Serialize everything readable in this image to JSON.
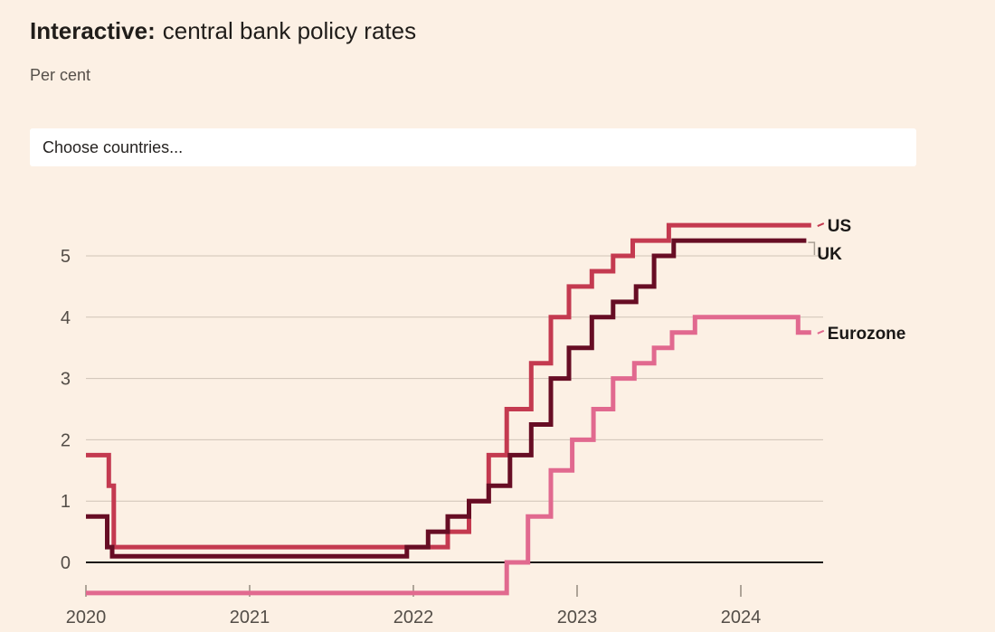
{
  "header": {
    "title_bold": "Interactive:",
    "title_rest": "central bank policy rates",
    "subtitle": "Per cent"
  },
  "controls": {
    "country_select": {
      "placeholder": "Choose countries..."
    }
  },
  "colors": {
    "background": "#fcf0e4",
    "title_text": "#201d1a",
    "subtitle_text": "#55504a",
    "axis_text": "#534d47",
    "grid_line": "#cfc3b6",
    "zero_line": "#181512",
    "axis_tick": "#948a7e",
    "leader_line": "#a99f93",
    "legend_text": "#1a1817",
    "us": "#c43a50",
    "uk": "#670d24",
    "eurozone": "#e1698f"
  },
  "chart_data": {
    "type": "line",
    "step": true,
    "title": "Interactive: central bank policy rates",
    "ylabel": "Per cent",
    "grid": true,
    "legend_position": "right-of-line-ends",
    "x_axis": {
      "ticks": [
        2020,
        2021,
        2022,
        2023,
        2024
      ],
      "range": [
        2020.0,
        2024.45
      ]
    },
    "y_axis": {
      "ticks": [
        0,
        1,
        2,
        3,
        4,
        5
      ],
      "range": [
        -0.5,
        5.5
      ],
      "zero_line": true
    },
    "series": [
      {
        "id": "us",
        "name": "US",
        "color": "#c43a50",
        "legend": {
          "dx": 18,
          "dy": 7,
          "leader": "dash"
        },
        "points": [
          [
            2020.0,
            1.75
          ],
          [
            2020.14,
            1.25
          ],
          [
            2020.17,
            0.25
          ],
          [
            2022.21,
            0.5
          ],
          [
            2022.34,
            1.0
          ],
          [
            2022.46,
            1.75
          ],
          [
            2022.57,
            2.5
          ],
          [
            2022.72,
            3.25
          ],
          [
            2022.84,
            4.0
          ],
          [
            2022.95,
            4.5
          ],
          [
            2023.09,
            4.75
          ],
          [
            2023.22,
            5.0
          ],
          [
            2023.34,
            5.25
          ],
          [
            2023.56,
            5.5
          ],
          [
            2024.43,
            5.5
          ]
        ]
      },
      {
        "id": "uk",
        "name": "UK",
        "color": "#670d24",
        "legend": {
          "dx": 12,
          "dy": 21,
          "leader": "elbow"
        },
        "points": [
          [
            2020.0,
            0.75
          ],
          [
            2020.13,
            0.25
          ],
          [
            2020.16,
            0.1
          ],
          [
            2021.96,
            0.25
          ],
          [
            2022.09,
            0.5
          ],
          [
            2022.21,
            0.75
          ],
          [
            2022.34,
            1.0
          ],
          [
            2022.46,
            1.25
          ],
          [
            2022.59,
            1.75
          ],
          [
            2022.72,
            2.25
          ],
          [
            2022.84,
            3.0
          ],
          [
            2022.95,
            3.5
          ],
          [
            2023.09,
            4.0
          ],
          [
            2023.22,
            4.25
          ],
          [
            2023.36,
            4.5
          ],
          [
            2023.47,
            5.0
          ],
          [
            2023.59,
            5.25
          ],
          [
            2024.4,
            5.25
          ]
        ]
      },
      {
        "id": "eurozone",
        "name": "Eurozone",
        "color": "#e1698f",
        "legend": {
          "dx": 18,
          "dy": 7,
          "leader": "dash"
        },
        "points": [
          [
            2020.0,
            -0.5
          ],
          [
            2022.57,
            0.0
          ],
          [
            2022.7,
            0.75
          ],
          [
            2022.84,
            1.5
          ],
          [
            2022.97,
            2.0
          ],
          [
            2023.1,
            2.5
          ],
          [
            2023.22,
            3.0
          ],
          [
            2023.35,
            3.25
          ],
          [
            2023.47,
            3.5
          ],
          [
            2023.58,
            3.75
          ],
          [
            2023.72,
            4.0
          ],
          [
            2024.35,
            3.75
          ],
          [
            2024.43,
            3.75
          ]
        ]
      }
    ]
  }
}
